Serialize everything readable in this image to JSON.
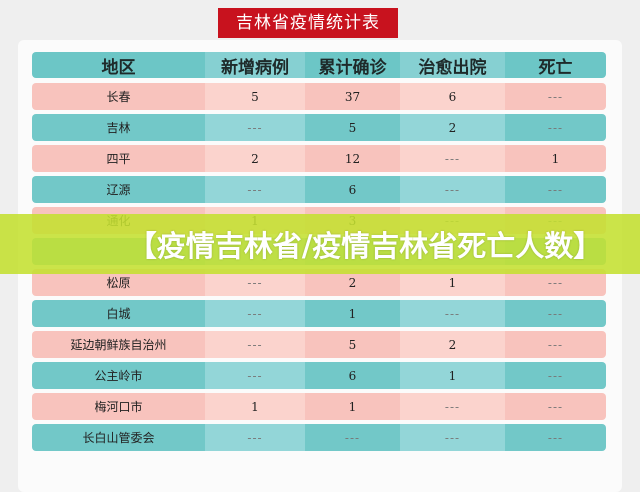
{
  "title": "吉林省疫情统计表",
  "banner": "【疫情吉林省/疫情吉林省死亡人数】",
  "table": {
    "headers": [
      "地区",
      "新增病例",
      "累计确诊",
      "治愈出院",
      "死亡"
    ],
    "rows": [
      [
        "长春",
        "5",
        "37",
        "6",
        "---"
      ],
      [
        "吉林",
        "---",
        "5",
        "2",
        "---"
      ],
      [
        "四平",
        "2",
        "12",
        "---",
        "1"
      ],
      [
        "辽源",
        "---",
        "6",
        "---",
        "---"
      ],
      [
        "通化",
        "1",
        "3",
        "---",
        "---"
      ],
      [
        "",
        "",
        "",
        "",
        ""
      ],
      [
        "松原",
        "---",
        "2",
        "1",
        "---"
      ],
      [
        "白城",
        "---",
        "1",
        "---",
        "---"
      ],
      [
        "延边朝鲜族自治州",
        "---",
        "5",
        "2",
        "---"
      ],
      [
        "公主岭市",
        "---",
        "6",
        "1",
        "---"
      ],
      [
        "梅河口市",
        "1",
        "1",
        "---",
        "---"
      ],
      [
        "长白山管委会",
        "---",
        "---",
        "---",
        "---"
      ]
    ]
  },
  "colors": {
    "title_bg": "#c8121e",
    "row_pink": "#f8c3bd",
    "row_teal": "#72c8c8",
    "banner": "#c4e030"
  }
}
